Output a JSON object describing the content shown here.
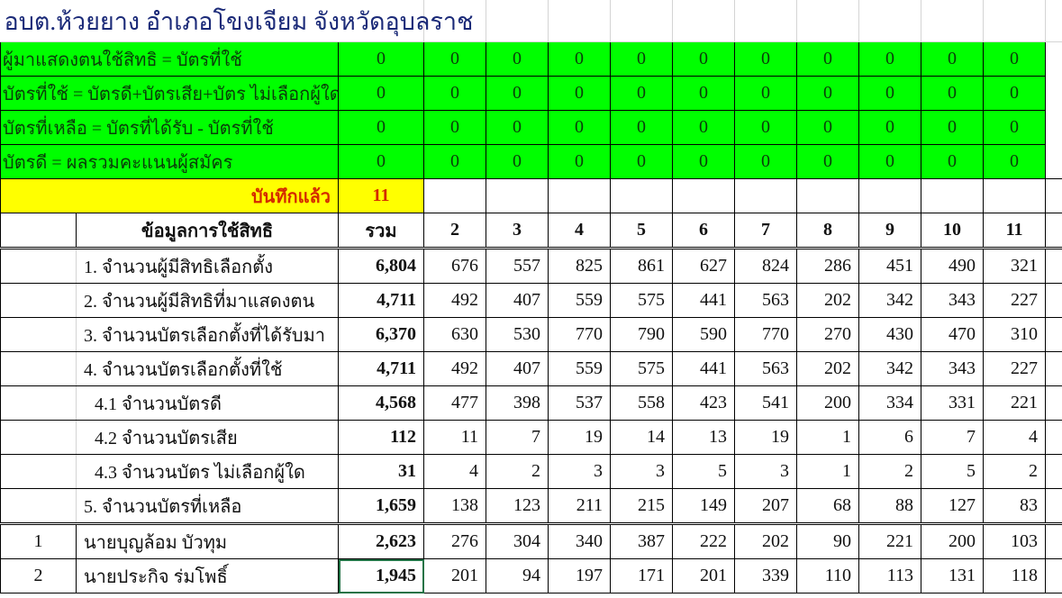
{
  "title": "อบต.ห้วยยาง อำเภอโขงเจียม จังหวัดอุบลราช",
  "colors": {
    "green": "#00ff00",
    "yellow": "#ffff00",
    "title": "#1b2a78",
    "saved_text": "#d42a00"
  },
  "checks": [
    {
      "label": "ผู้มาแสดงตนใช้สิทธิ = บัตรที่ใช้",
      "values": [
        "0",
        "0",
        "0",
        "0",
        "0",
        "0",
        "0",
        "0",
        "0",
        "0",
        "0"
      ]
    },
    {
      "label": "บัตรที่ใช้ = บัตรดี+บัตรเสีย+บัตร ไม่เลือกผู้ใด",
      "values": [
        "0",
        "0",
        "0",
        "0",
        "0",
        "0",
        "0",
        "0",
        "0",
        "0",
        "0"
      ]
    },
    {
      "label": "บัตรที่เหลือ = บัตรที่ได้รับ - บัตรที่ใช้",
      "values": [
        "0",
        "0",
        "0",
        "0",
        "0",
        "0",
        "0",
        "0",
        "0",
        "0",
        "0"
      ]
    },
    {
      "label": "บัตรดี = ผลรวมคะแนนผู้สมัคร",
      "values": [
        "0",
        "0",
        "0",
        "0",
        "0",
        "0",
        "0",
        "0",
        "0",
        "0",
        "0"
      ]
    }
  ],
  "saved": {
    "label": "บันทึกแล้ว",
    "value": "11"
  },
  "header": {
    "label": "ข้อมูลการใช้สิทธิ",
    "total": "รวม",
    "units": [
      "2",
      "3",
      "4",
      "5",
      "6",
      "7",
      "8",
      "9",
      "10",
      "11"
    ]
  },
  "stats": [
    {
      "label": "1. จำนวนผู้มีสิทธิเลือกตั้ง",
      "indent": false,
      "total": "6,804",
      "values": [
        "676",
        "557",
        "825",
        "861",
        "627",
        "824",
        "286",
        "451",
        "490",
        "321"
      ]
    },
    {
      "label": "2. จำนวนผู้มีสิทธิที่มาแสดงตน",
      "indent": false,
      "total": "4,711",
      "values": [
        "492",
        "407",
        "559",
        "575",
        "441",
        "563",
        "202",
        "342",
        "343",
        "227"
      ]
    },
    {
      "label": "3. จำนวนบัตรเลือกตั้งที่ได้รับมา",
      "indent": false,
      "total": "6,370",
      "values": [
        "630",
        "530",
        "770",
        "790",
        "590",
        "770",
        "270",
        "430",
        "470",
        "310"
      ]
    },
    {
      "label": "4. จำนวนบัตรเลือกตั้งที่ใช้",
      "indent": false,
      "total": "4,711",
      "values": [
        "492",
        "407",
        "559",
        "575",
        "441",
        "563",
        "202",
        "342",
        "343",
        "227"
      ]
    },
    {
      "label": "4.1 จำนวนบัตรดี",
      "indent": true,
      "total": "4,568",
      "values": [
        "477",
        "398",
        "537",
        "558",
        "423",
        "541",
        "200",
        "334",
        "331",
        "221"
      ]
    },
    {
      "label": "4.2 จำนวนบัตรเสีย",
      "indent": true,
      "total": "112",
      "values": [
        "11",
        "7",
        "19",
        "14",
        "13",
        "19",
        "1",
        "6",
        "7",
        "4"
      ]
    },
    {
      "label": "4.3 จำนวนบัตร ไม่เลือกผู้ใด",
      "indent": true,
      "total": "31",
      "values": [
        "4",
        "2",
        "3",
        "3",
        "5",
        "3",
        "1",
        "2",
        "5",
        "2"
      ]
    },
    {
      "label": "5. จำนวนบัตรที่เหลือ",
      "indent": false,
      "total": "1,659",
      "values": [
        "138",
        "123",
        "211",
        "215",
        "149",
        "207",
        "68",
        "88",
        "127",
        "83"
      ]
    }
  ],
  "candidates": [
    {
      "no": "1",
      "name": "นายบุญล้อม  บัวทุม",
      "total": "2,623",
      "values": [
        "276",
        "304",
        "340",
        "387",
        "222",
        "202",
        "90",
        "221",
        "200",
        "103"
      ]
    },
    {
      "no": "2",
      "name": "นายประกิจ  ร่มโพธิ์",
      "total": "1,945",
      "values": [
        "201",
        "94",
        "197",
        "171",
        "201",
        "339",
        "110",
        "113",
        "131",
        "118"
      ]
    }
  ]
}
